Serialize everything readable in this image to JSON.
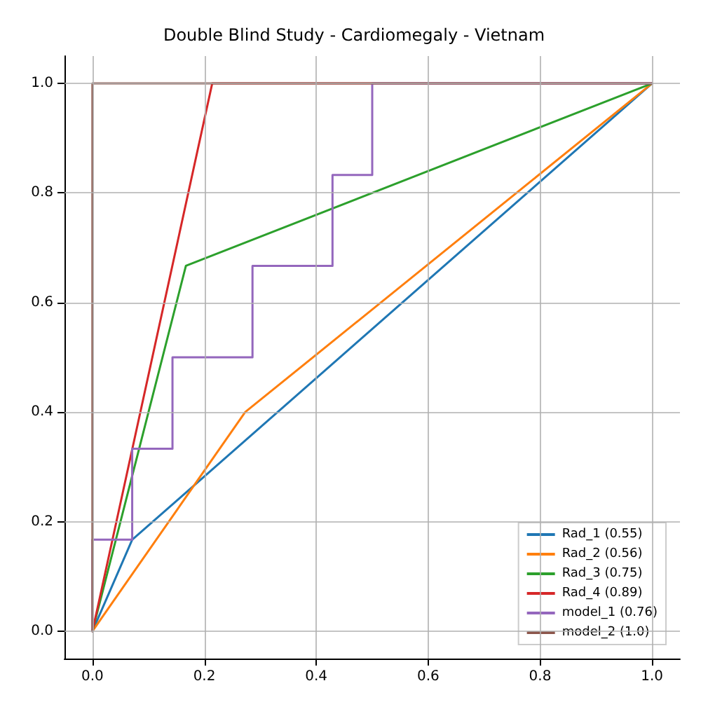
{
  "chart_data": {
    "type": "line",
    "title": "Double Blind Study - Cardiomegaly - Vietnam",
    "xlim": [
      -0.05,
      1.05
    ],
    "ylim": [
      -0.05,
      1.05
    ],
    "xticks": [
      {
        "value": 0,
        "label": "0.0"
      },
      0.2,
      0.4,
      0.6,
      0.8,
      {
        "value": 1,
        "label": "1.0"
      }
    ],
    "yticks": [
      {
        "value": 0,
        "label": "0.0"
      },
      0.2,
      0.4,
      0.6,
      0.8,
      {
        "value": 1,
        "label": "1.0"
      }
    ],
    "grid": true,
    "legend": "bottom right",
    "marker": "none",
    "line_style": "solid",
    "series": [
      {
        "name": "Rad_1 (0.55)",
        "color": "#1f77b4",
        "x": [
          0,
          0.071,
          1
        ],
        "values": [
          0,
          0.167,
          1
        ]
      },
      {
        "name": "Rad_2 (0.56)",
        "color": "#ff7f0e",
        "x": [
          0,
          0.273,
          1
        ],
        "values": [
          0,
          0.4,
          1
        ]
      },
      {
        "name": "Rad_3 (0.75)",
        "color": "#2ca02c",
        "x": [
          0,
          0.167,
          1
        ],
        "values": [
          0,
          0.667,
          1
        ]
      },
      {
        "name": "Rad_4 (0.89)",
        "color": "#d62728",
        "x": [
          0,
          0.214,
          1
        ],
        "values": [
          0,
          1,
          1
        ]
      },
      {
        "name": "model_1 (0.76)",
        "color": "#9467bd",
        "x": [
          0,
          0,
          0.071,
          0.071,
          0.143,
          0.143,
          0.286,
          0.286,
          0.429,
          0.429,
          0.5,
          0.5,
          1
        ],
        "values": [
          0,
          0.167,
          0.167,
          0.333,
          0.333,
          0.5,
          0.5,
          0.667,
          0.667,
          0.833,
          0.833,
          1,
          1
        ]
      },
      {
        "name": "model_2 (1.0)",
        "color": "#8c564b",
        "x": [
          0,
          0,
          1
        ],
        "values": [
          0,
          1,
          1
        ]
      }
    ]
  }
}
